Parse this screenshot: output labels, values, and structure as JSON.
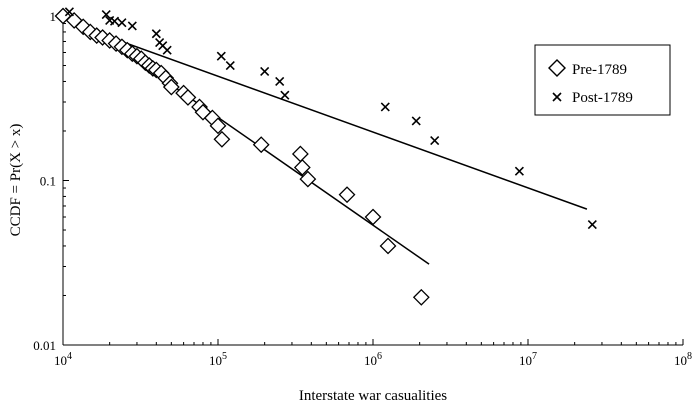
{
  "chart_data": {
    "type": "scatter",
    "xlabel": "Interstate war casualities",
    "ylabel": "CCDF = Pr(X > x)",
    "xscale": "log",
    "yscale": "log",
    "xlim": [
      10000,
      100000000
    ],
    "ylim": [
      0.01,
      1
    ],
    "x_ticks": [
      {
        "value": 10000,
        "base": "10",
        "exp": "4"
      },
      {
        "value": 100000,
        "base": "10",
        "exp": "5"
      },
      {
        "value": 1000000,
        "base": "10",
        "exp": "6"
      },
      {
        "value": 10000000,
        "base": "10",
        "exp": "7"
      },
      {
        "value": 100000000,
        "base": "10",
        "exp": "8"
      }
    ],
    "y_ticks": [
      {
        "value": 1,
        "label": "1"
      },
      {
        "value": 0.1,
        "label": "0.1"
      },
      {
        "value": 0.01,
        "label": "0.01"
      }
    ],
    "grid": false,
    "legend_position": "top-right",
    "series": [
      {
        "name": "Pre-1789",
        "marker": "diamond",
        "points": [
          [
            10000,
            1.0
          ],
          [
            11800,
            0.94
          ],
          [
            13500,
            0.86
          ],
          [
            15000,
            0.8
          ],
          [
            16500,
            0.76
          ],
          [
            18000,
            0.74
          ],
          [
            20000,
            0.71
          ],
          [
            22000,
            0.68
          ],
          [
            24000,
            0.65
          ],
          [
            26000,
            0.62
          ],
          [
            28000,
            0.59
          ],
          [
            30000,
            0.57
          ],
          [
            32000,
            0.55
          ],
          [
            34000,
            0.52
          ],
          [
            36000,
            0.5
          ],
          [
            38000,
            0.48
          ],
          [
            40000,
            0.47
          ],
          [
            43000,
            0.45
          ],
          [
            46000,
            0.42
          ],
          [
            49000,
            0.39
          ],
          [
            50000,
            0.37
          ],
          [
            60000,
            0.34
          ],
          [
            64000,
            0.32
          ],
          [
            76000,
            0.28
          ],
          [
            80000,
            0.26
          ],
          [
            92000,
            0.24
          ],
          [
            100000,
            0.215
          ],
          [
            106000,
            0.178
          ],
          [
            190000,
            0.165
          ],
          [
            340000,
            0.145
          ],
          [
            350000,
            0.12
          ],
          [
            380000,
            0.102
          ],
          [
            680000,
            0.082
          ],
          [
            1000000,
            0.06
          ],
          [
            1250000,
            0.04
          ],
          [
            2050000,
            0.0195
          ]
        ]
      },
      {
        "name": "Post-1789",
        "marker": "x",
        "points": [
          [
            11000,
            1.06
          ],
          [
            19000,
            1.02
          ],
          [
            20000,
            0.94
          ],
          [
            21500,
            0.93
          ],
          [
            24000,
            0.91
          ],
          [
            28000,
            0.87
          ],
          [
            40000,
            0.78
          ],
          [
            42000,
            0.69
          ],
          [
            44000,
            0.66
          ],
          [
            47000,
            0.62
          ],
          [
            105000,
            0.57
          ],
          [
            120000,
            0.5
          ],
          [
            200000,
            0.46
          ],
          [
            250000,
            0.4
          ],
          [
            270000,
            0.33
          ],
          [
            1200000,
            0.28
          ],
          [
            1900000,
            0.23
          ],
          [
            2500000,
            0.175
          ],
          [
            8800000,
            0.114
          ],
          [
            26000000,
            0.054
          ]
        ]
      }
    ],
    "fit_lines": [
      {
        "series": "Pre-1789",
        "from": [
          12800,
          0.93
        ],
        "to": [
          2300000,
          0.031
        ]
      },
      {
        "series": "Post-1789",
        "from": [
          13000,
          0.86
        ],
        "to": [
          24000000,
          0.067
        ]
      }
    ]
  }
}
